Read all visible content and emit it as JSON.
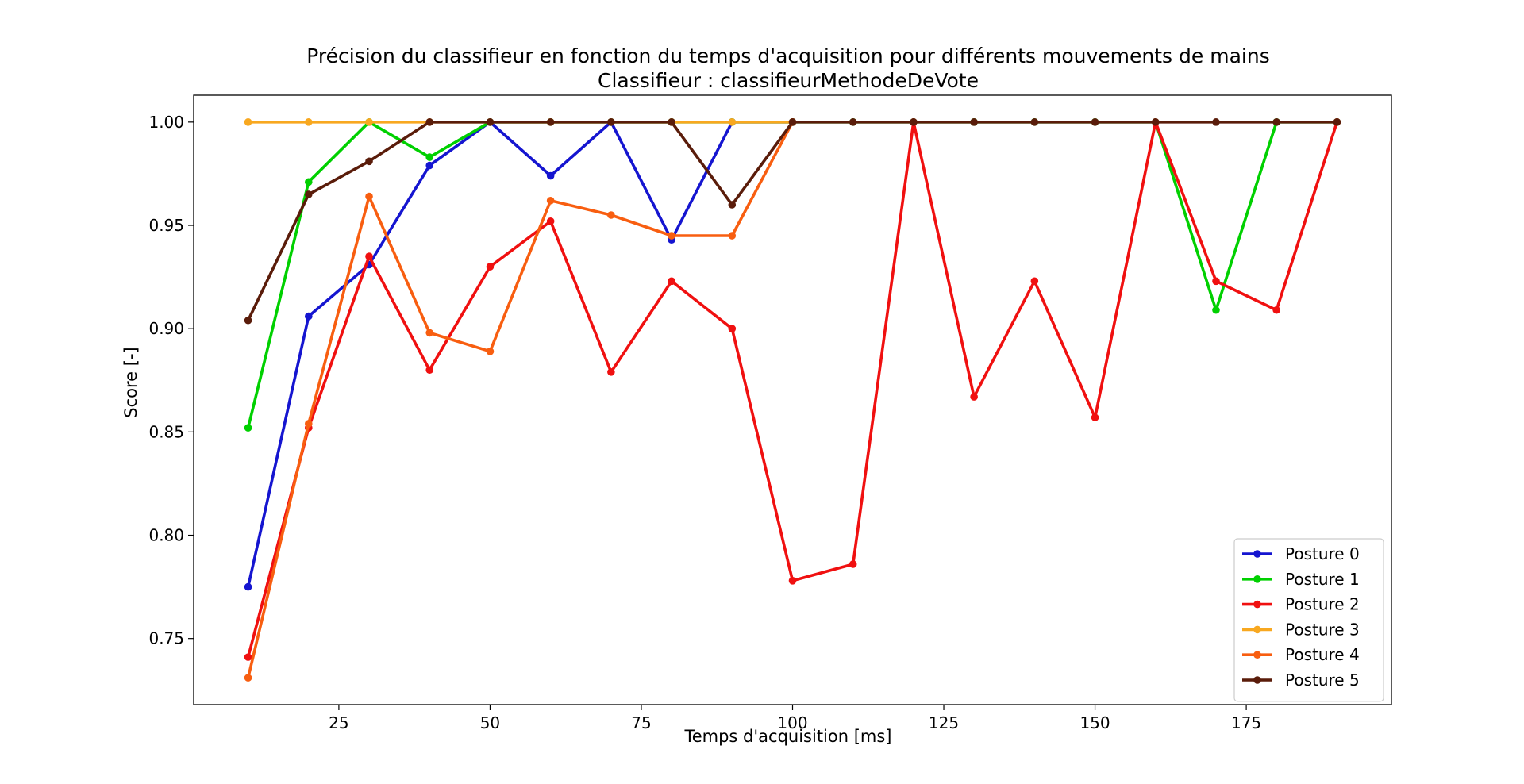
{
  "chart_data": {
    "type": "line",
    "title": "Précision du classifieur en fonction du temps d'acquisition pour différents mouvements de mains",
    "subtitle": "Classifieur : classifieurMethodeDeVote",
    "xlabel": "Temps d'acquisition [ms]",
    "ylabel": "Score [-]",
    "xlim": [
      1,
      199
    ],
    "ylim": [
      0.718,
      1.013
    ],
    "xticks": [
      25,
      50,
      75,
      100,
      125,
      150,
      175
    ],
    "yticks": [
      0.75,
      0.8,
      0.85,
      0.9,
      0.95,
      1.0
    ],
    "xtick_labels": [
      "25",
      "50",
      "75",
      "100",
      "125",
      "150",
      "175"
    ],
    "ytick_labels": [
      "0.75",
      "0.80",
      "0.85",
      "0.90",
      "0.95",
      "1.00"
    ],
    "grid": false,
    "legend_position": "bottom-right",
    "series": [
      {
        "name": "Posture 0",
        "color": "#1515d0",
        "x": [
          10,
          20,
          30,
          40,
          50,
          60,
          70,
          80,
          90,
          100
        ],
        "y": [
          0.775,
          0.906,
          0.931,
          0.979,
          1.0,
          0.974,
          1.0,
          0.943,
          1.0,
          1.0
        ]
      },
      {
        "name": "Posture 1",
        "color": "#00d000",
        "x": [
          10,
          20,
          30,
          40,
          50,
          60,
          70,
          80,
          90,
          100,
          110,
          120,
          130,
          140,
          150,
          160,
          170,
          180,
          190
        ],
        "y": [
          0.852,
          0.971,
          1.0,
          0.983,
          1.0,
          1.0,
          1.0,
          1.0,
          1.0,
          1.0,
          1.0,
          1.0,
          1.0,
          1.0,
          1.0,
          1.0,
          0.909,
          1.0,
          1.0
        ]
      },
      {
        "name": "Posture 2",
        "color": "#f01010",
        "x": [
          10,
          20,
          30,
          40,
          50,
          60,
          70,
          80,
          90,
          100,
          110,
          120,
          130,
          140,
          150,
          160,
          170,
          180,
          190
        ],
        "y": [
          0.741,
          0.852,
          0.935,
          0.88,
          0.93,
          0.952,
          0.879,
          0.923,
          0.9,
          0.778,
          0.786,
          1.0,
          0.867,
          0.923,
          0.857,
          1.0,
          0.923,
          0.909,
          1.0
        ]
      },
      {
        "name": "Posture 3",
        "color": "#f8a820",
        "x": [
          10,
          20,
          30,
          40,
          50,
          60,
          70,
          80,
          90,
          100
        ],
        "y": [
          1.0,
          1.0,
          1.0,
          1.0,
          1.0,
          1.0,
          1.0,
          1.0,
          1.0,
          1.0
        ]
      },
      {
        "name": "Posture 4",
        "color": "#f85e10",
        "x": [
          10,
          20,
          30,
          40,
          50,
          60,
          70,
          80,
          90,
          100
        ],
        "y": [
          0.731,
          0.854,
          0.964,
          0.898,
          0.889,
          0.962,
          0.955,
          0.945,
          0.945,
          1.0
        ]
      },
      {
        "name": "Posture 5",
        "color": "#5a1c0a",
        "x": [
          10,
          20,
          30,
          40,
          50,
          60,
          70,
          80,
          90,
          100,
          110,
          120,
          130,
          140,
          150,
          160,
          170,
          180,
          190
        ],
        "y": [
          0.904,
          0.965,
          0.981,
          1.0,
          1.0,
          1.0,
          1.0,
          1.0,
          0.96,
          1.0,
          1.0,
          1.0,
          1.0,
          1.0,
          1.0,
          1.0,
          1.0,
          1.0,
          1.0
        ]
      }
    ]
  }
}
